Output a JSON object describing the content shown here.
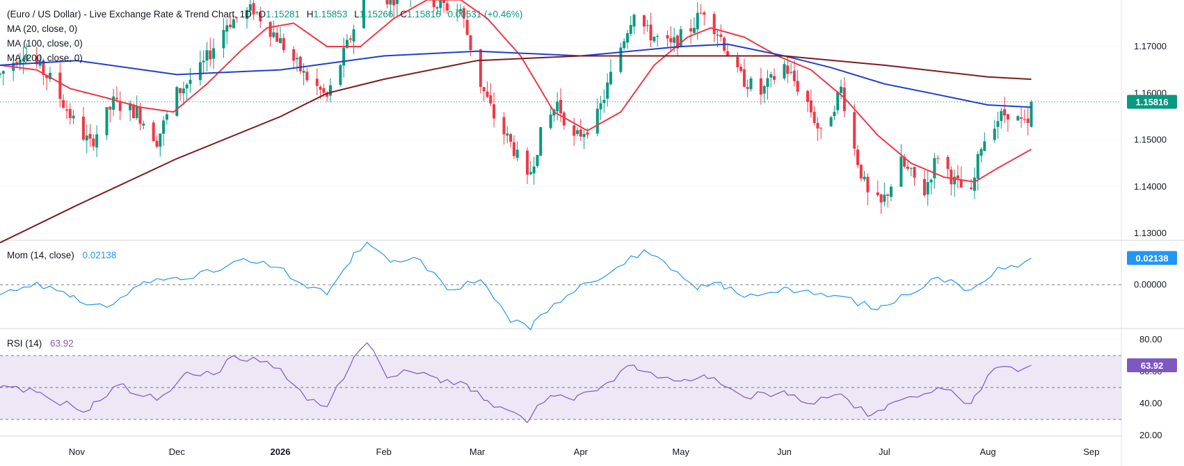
{
  "header": {
    "title": "(Euro / US Dollar) - Live Exchange Rate & Trend Chart, 1D",
    "ohlc": [
      {
        "label": "O",
        "value": "1.15281"
      },
      {
        "label": "H",
        "value": "1.15853"
      },
      {
        "label": "L",
        "value": "1.15266"
      },
      {
        "label": "C",
        "value": "1.15816"
      }
    ],
    "change": "0.00531 (+0.46%)"
  },
  "legends": {
    "ma20": "MA (20, close, 0)",
    "ma100": "MA (100, close, 0)",
    "ma200": "MA (200, close, 0)",
    "mom_label": "Mom (14, close)",
    "mom_value": "0.02138",
    "rsi_label": "RSI (14)",
    "rsi_value": "63.92"
  },
  "colors": {
    "up": "#089981",
    "down": "#f23645",
    "ma20": "#f23645",
    "ma100": "#1e3fcf",
    "ma200": "#7b1c1c",
    "mom": "#2196f3",
    "rsi": "#7e57c2",
    "rsi_band": "#ede7f6",
    "grid": "#f0f3fa",
    "text": "#131722"
  },
  "price_axis": {
    "ticks": [
      "1.17000",
      "1.16000",
      "1.15000",
      "1.14000",
      "1.13000"
    ],
    "current": "1.15816"
  },
  "mom_axis": {
    "ticks": [
      "0.00000"
    ],
    "current": "0.02138"
  },
  "rsi_axis": {
    "ticks": [
      "80.00",
      "60.00",
      "40.00",
      "20.00"
    ],
    "current": "63.92"
  },
  "time_axis": [
    "Nov",
    "Dec",
    "2026",
    "Feb",
    "Mar",
    "Apr",
    "May",
    "Jun",
    "Jul",
    "Aug",
    "Sep"
  ],
  "chart_data": {
    "type": "candlestick",
    "price_range": [
      1.128,
      1.18
    ],
    "mom_range": [
      -0.045,
      0.045
    ],
    "rsi_range": [
      20,
      80
    ],
    "rsi_levels": [
      70,
      50,
      30
    ],
    "last": {
      "open": 1.15281,
      "high": 1.15853,
      "low": 1.15266,
      "close": 1.15816,
      "mom": 0.02138,
      "rsi": 63.92
    },
    "close_path": [
      [
        "2025-10-09",
        1.164
      ],
      [
        "2025-10-16",
        1.169
      ],
      [
        "2025-10-24",
        1.163
      ],
      [
        "2025-10-31",
        1.154
      ],
      [
        "2025-11-05",
        1.149
      ],
      [
        "2025-11-12",
        1.158
      ],
      [
        "2025-11-19",
        1.156
      ],
      [
        "2025-11-25",
        1.15
      ],
      [
        "2025-12-01",
        1.16
      ],
      [
        "2025-12-08",
        1.165
      ],
      [
        "2025-12-16",
        1.175
      ],
      [
        "2025-12-24",
        1.178
      ],
      [
        "2025-12-31",
        1.172
      ],
      [
        "2026-01-08",
        1.164
      ],
      [
        "2026-01-15",
        1.159
      ],
      [
        "2026-01-22",
        1.172
      ],
      [
        "2026-01-27",
        1.183
      ],
      [
        "2026-02-03",
        1.18
      ],
      [
        "2026-02-10",
        1.184
      ],
      [
        "2026-02-17",
        1.179
      ],
      [
        "2026-02-24",
        1.178
      ],
      [
        "2026-03-02",
        1.162
      ],
      [
        "2026-03-06",
        1.155
      ],
      [
        "2026-03-12",
        1.148
      ],
      [
        "2026-03-16",
        1.141
      ],
      [
        "2026-03-20",
        1.151
      ],
      [
        "2026-03-25",
        1.158
      ],
      [
        "2026-03-30",
        1.15
      ],
      [
        "2026-04-06",
        1.155
      ],
      [
        "2026-04-13",
        1.17
      ],
      [
        "2026-04-17",
        1.178
      ],
      [
        "2026-04-21",
        1.173
      ],
      [
        "2026-04-28",
        1.17
      ],
      [
        "2026-05-04",
        1.174
      ],
      [
        "2026-05-08",
        1.178
      ],
      [
        "2026-05-13",
        1.172
      ],
      [
        "2026-05-18",
        1.164
      ],
      [
        "2026-05-25",
        1.16
      ],
      [
        "2026-06-01",
        1.166
      ],
      [
        "2026-06-08",
        1.158
      ],
      [
        "2026-06-12",
        1.151
      ],
      [
        "2026-06-18",
        1.161
      ],
      [
        "2026-06-22",
        1.148
      ],
      [
        "2026-06-26",
        1.138
      ],
      [
        "2026-06-30",
        1.136
      ],
      [
        "2026-07-06",
        1.145
      ],
      [
        "2026-07-13",
        1.139
      ],
      [
        "2026-07-17",
        1.147
      ],
      [
        "2026-07-22",
        1.141
      ],
      [
        "2026-07-27",
        1.138
      ],
      [
        "2026-07-30",
        1.149
      ],
      [
        "2026-08-03",
        1.154
      ],
      [
        "2026-08-07",
        1.156
      ],
      [
        "2026-08-12",
        1.153
      ],
      [
        "2026-08-13",
        1.15281
      ],
      [
        "2026-08-14",
        1.15816
      ]
    ],
    "series": [
      {
        "name": "MA (20, close, 0)",
        "type": "line",
        "points": [
          [
            "2025-10-09",
            1.166
          ],
          [
            "2025-10-20",
            1.165
          ],
          [
            "2025-10-30",
            1.161
          ],
          [
            "2025-11-10",
            1.159
          ],
          [
            "2025-11-20",
            1.157
          ],
          [
            "2025-11-30",
            1.156
          ],
          [
            "2025-12-10",
            1.162
          ],
          [
            "2025-12-20",
            1.169
          ],
          [
            "2025-12-28",
            1.174
          ],
          [
            "2026-01-05",
            1.175
          ],
          [
            "2026-01-15",
            1.17
          ],
          [
            "2026-01-25",
            1.17
          ],
          [
            "2026-02-04",
            1.176
          ],
          [
            "2026-02-14",
            1.18
          ],
          [
            "2026-02-24",
            1.18
          ],
          [
            "2026-03-04",
            1.176
          ],
          [
            "2026-03-14",
            1.168
          ],
          [
            "2026-03-24",
            1.156
          ],
          [
            "2026-04-03",
            1.152
          ],
          [
            "2026-04-13",
            1.156
          ],
          [
            "2026-04-23",
            1.166
          ],
          [
            "2026-05-03",
            1.172
          ],
          [
            "2026-05-10",
            1.174
          ],
          [
            "2026-05-20",
            1.172
          ],
          [
            "2026-05-30",
            1.168
          ],
          [
            "2026-06-09",
            1.165
          ],
          [
            "2026-06-19",
            1.159
          ],
          [
            "2026-06-29",
            1.151
          ],
          [
            "2026-07-09",
            1.145
          ],
          [
            "2026-07-19",
            1.142
          ],
          [
            "2026-07-28",
            1.141
          ],
          [
            "2026-08-04",
            1.144
          ],
          [
            "2026-08-14",
            1.148
          ]
        ]
      },
      {
        "name": "MA (100, close, 0)",
        "type": "line",
        "points": [
          [
            "2025-10-09",
            1.166
          ],
          [
            "2025-11-01",
            1.167
          ],
          [
            "2025-12-01",
            1.164
          ],
          [
            "2026-01-01",
            1.165
          ],
          [
            "2026-02-01",
            1.168
          ],
          [
            "2026-03-01",
            1.169
          ],
          [
            "2026-04-01",
            1.168
          ],
          [
            "2026-05-01",
            1.17
          ],
          [
            "2026-05-15",
            1.1705
          ],
          [
            "2026-06-01",
            1.168
          ],
          [
            "2026-06-15",
            1.1655
          ],
          [
            "2026-07-01",
            1.162
          ],
          [
            "2026-07-15",
            1.16
          ],
          [
            "2026-08-01",
            1.1575
          ],
          [
            "2026-08-14",
            1.157
          ]
        ]
      },
      {
        "name": "MA (200, close, 0)",
        "type": "line",
        "points": [
          [
            "2025-10-09",
            1.128
          ],
          [
            "2025-11-01",
            1.136
          ],
          [
            "2025-12-01",
            1.146
          ],
          [
            "2026-01-01",
            1.155
          ],
          [
            "2026-01-15",
            1.16
          ],
          [
            "2026-02-01",
            1.163
          ],
          [
            "2026-03-01",
            1.167
          ],
          [
            "2026-04-01",
            1.168
          ],
          [
            "2026-05-01",
            1.168
          ],
          [
            "2026-06-01",
            1.168
          ],
          [
            "2026-07-01",
            1.166
          ],
          [
            "2026-08-01",
            1.1635
          ],
          [
            "2026-08-14",
            1.163
          ]
        ]
      },
      {
        "name": "Mom (14, close)",
        "type": "line",
        "points": [
          [
            "2025-10-09",
            -0.008
          ],
          [
            "2025-10-20",
            0.002
          ],
          [
            "2025-10-30",
            -0.01
          ],
          [
            "2025-11-10",
            -0.018
          ],
          [
            "2025-11-20",
            0.0
          ],
          [
            "2025-12-01",
            0.006
          ],
          [
            "2025-12-12",
            0.01
          ],
          [
            "2025-12-20",
            0.02
          ],
          [
            "2025-12-31",
            0.014
          ],
          [
            "2026-01-08",
            0.0
          ],
          [
            "2026-01-15",
            -0.008
          ],
          [
            "2026-01-22",
            0.018
          ],
          [
            "2026-01-27",
            0.034
          ],
          [
            "2026-02-03",
            0.018
          ],
          [
            "2026-02-12",
            0.02
          ],
          [
            "2026-02-20",
            -0.004
          ],
          [
            "2026-03-02",
            0.004
          ],
          [
            "2026-03-10",
            -0.025
          ],
          [
            "2026-03-17",
            -0.036
          ],
          [
            "2026-03-24",
            -0.015
          ],
          [
            "2026-04-01",
            0.0
          ],
          [
            "2026-04-10",
            0.01
          ],
          [
            "2026-04-20",
            0.028
          ],
          [
            "2026-04-28",
            0.012
          ],
          [
            "2026-05-06",
            -0.004
          ],
          [
            "2026-05-13",
            0.002
          ],
          [
            "2026-05-20",
            -0.01
          ],
          [
            "2026-06-01",
            -0.002
          ],
          [
            "2026-06-10",
            -0.008
          ],
          [
            "2026-06-20",
            -0.01
          ],
          [
            "2026-06-29",
            -0.02
          ],
          [
            "2026-07-08",
            -0.008
          ],
          [
            "2026-07-17",
            0.006
          ],
          [
            "2026-07-27",
            -0.004
          ],
          [
            "2026-08-04",
            0.014
          ],
          [
            "2026-08-10",
            0.014
          ],
          [
            "2026-08-14",
            0.02138
          ]
        ]
      },
      {
        "name": "RSI (14)",
        "type": "line",
        "points": [
          [
            "2025-10-09",
            50
          ],
          [
            "2025-10-20",
            47
          ],
          [
            "2025-10-31",
            38
          ],
          [
            "2025-11-05",
            36
          ],
          [
            "2025-11-14",
            52
          ],
          [
            "2025-11-25",
            42
          ],
          [
            "2025-12-03",
            58
          ],
          [
            "2025-12-12",
            58
          ],
          [
            "2025-12-18",
            70
          ],
          [
            "2025-12-26",
            66
          ],
          [
            "2026-01-01",
            62
          ],
          [
            "2026-01-09",
            42
          ],
          [
            "2026-01-15",
            38
          ],
          [
            "2026-01-22",
            64
          ],
          [
            "2026-01-27",
            78
          ],
          [
            "2026-02-02",
            56
          ],
          [
            "2026-02-09",
            60
          ],
          [
            "2026-02-17",
            56
          ],
          [
            "2026-02-26",
            52
          ],
          [
            "2026-03-03",
            42
          ],
          [
            "2026-03-10",
            36
          ],
          [
            "2026-03-16",
            28
          ],
          [
            "2026-03-23",
            45
          ],
          [
            "2026-03-30",
            42
          ],
          [
            "2026-04-06",
            48
          ],
          [
            "2026-04-17",
            64
          ],
          [
            "2026-04-24",
            56
          ],
          [
            "2026-05-01",
            54
          ],
          [
            "2026-05-08",
            58
          ],
          [
            "2026-05-13",
            52
          ],
          [
            "2026-05-20",
            44
          ],
          [
            "2026-06-01",
            48
          ],
          [
            "2026-06-08",
            40
          ],
          [
            "2026-06-18",
            46
          ],
          [
            "2026-06-26",
            32
          ],
          [
            "2026-07-01",
            36
          ],
          [
            "2026-07-08",
            44
          ],
          [
            "2026-07-17",
            50
          ],
          [
            "2026-07-27",
            40
          ],
          [
            "2026-08-03",
            62
          ],
          [
            "2026-08-10",
            60
          ],
          [
            "2026-08-14",
            63.92
          ]
        ]
      }
    ]
  }
}
